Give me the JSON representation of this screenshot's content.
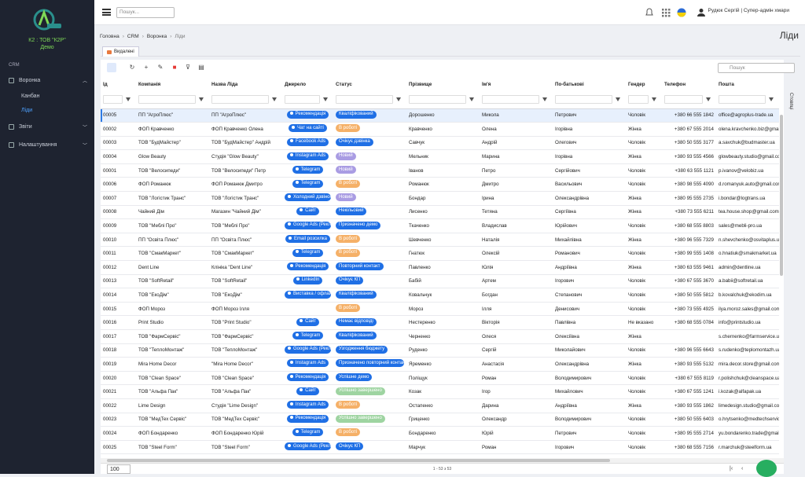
{
  "sidebar": {
    "company": "К2 : ТОВ \"К2Р\"",
    "subtitle": "Демо",
    "section": "CRM",
    "menu": [
      "Воронка",
      "Канбан",
      "Ліди",
      "Звіти",
      "Налаштування"
    ]
  },
  "topbar": {
    "search": "Пошук...",
    "user": "Рудюк Сергій | Супер-адмін хмари"
  },
  "breadcrumb": [
    "Головна",
    "CRM",
    "Воронка",
    "Ліди"
  ],
  "page_title": "Ліди",
  "tab": "Видалені",
  "toolbar": {
    "search": "Пошук",
    "columns_button": "Стовпці"
  },
  "table": {
    "columns": [
      "Ід",
      "Компанія",
      "Назва Ліда",
      "Джерело",
      "Статус",
      "Прізвище",
      "Ім'я",
      "По-батькові",
      "Гендер",
      "Телефон",
      "Пошта"
    ],
    "rows": [
      [
        "00005",
        "ПП \"АгроПлюс\"",
        "ПП \"АгроПлюс\"",
        "Рекомендація",
        "Кваліфікований",
        "Дорошенко",
        "Микола",
        "Петрович",
        "Чоловік",
        "+380 66 555 1842",
        "office@agroplus-trade.ua"
      ],
      [
        "00002",
        "ФОП Кравченко",
        "ФОП Кравченко Олена",
        "Чат на сайті",
        "В роботі",
        "Кравченко",
        "Олена",
        "Ігорівна",
        "Жінка",
        "+380 67 555 2014",
        "olena.kravchenko.biz@gmail"
      ],
      [
        "00003",
        "ТОВ \"БудМайстер\"",
        "ТОВ \"БудМайстер\" Андрій",
        "Facebook Ads",
        "Очікує дзвінка",
        "Савчук",
        "Андрій",
        "Олегович",
        "Чоловік",
        "+380 50 555 3177",
        "a.savchuk@budmaster.ua"
      ],
      [
        "00004",
        "Glow Beauty",
        "Студія \"Glow Beauty\"",
        "Instagram Ads",
        "Новий",
        "Мельник",
        "Марина",
        "Ігорівна",
        "Жінка",
        "+380 93 555 4566",
        "glowbeauty.studio@gmail.co"
      ],
      [
        "00001",
        "ТОВ \"Велосипеди\"",
        "ТОВ \"Велосипеди\" Петр",
        "Telegram",
        "Новий",
        "Іванов",
        "Петро",
        "Сергійович",
        "Чоловік",
        "+380 63 555 1121",
        "p.ivanov@velobiz.ua"
      ],
      [
        "00006",
        "ФОП Романюк",
        "ФОП Романюк Дмитро",
        "Telegram",
        "В роботі",
        "Романюк",
        "Дмитро",
        "Васильович",
        "Чоловік",
        "+380 98 555 4090",
        "d.romanyuk.auto@gmail.com"
      ],
      [
        "00007",
        "ТОВ \"Логістик Транс\"",
        "ТОВ \"Логістик Транс\"",
        "Холодний дзвінок",
        "Новий",
        "Бондар",
        "Ірина",
        "Олександрівна",
        "Жінка",
        "+380 95 555 2735",
        "i.bondar@logtrans.ua"
      ],
      [
        "00008",
        "Чайний Дім",
        "Магазин \"Чайний Дім\"",
        "Сайт",
        "Некільовий",
        "Лисенко",
        "Тетяна",
        "Сергіївна",
        "Жінка",
        "+380 73 555 6211",
        "tea.house.shop@gmail.com"
      ],
      [
        "00009",
        "ТОВ \"Меблі Про\"",
        "ТОВ \"Меблі Про\"",
        "Google Ads (Реклама)",
        "Призначено демо",
        "Ткаченко",
        "Владислав",
        "Юрійович",
        "Чоловік",
        "+380 68 555 8803",
        "sales@mebli-pro.ua"
      ],
      [
        "00010",
        "ПП \"Освіта Плюс\"",
        "ПП \"Освіта Плюс\"",
        "Email розсилка",
        "В роботі",
        "Шевченко",
        "Наталія",
        "Михайлівна",
        "Жінка",
        "+380 96 555 7329",
        "n.shevchenko@osvitaplus.ua"
      ],
      [
        "00011",
        "ТОВ \"СмакМаркет\"",
        "ТОВ \"СмакМаркет\"",
        "Telegram",
        "В роботі",
        "Гнатюк",
        "Олексій",
        "Романович",
        "Чоловік",
        "+380 99 555 1408",
        "o.hnatiuk@smakmarket.ua"
      ],
      [
        "00012",
        "Dent Line",
        "Клініка \"Dent Line\"",
        "Рекомендація",
        "Повторний контакт",
        "Павленко",
        "Юлія",
        "Андріївна",
        "Жінка",
        "+380 63 555 9461",
        "admin@dentline.ua"
      ],
      [
        "00013",
        "ТОВ \"SoftRetail\"",
        "ТОВ \"SoftRetail\"",
        "LinkedIn",
        "Очікує КП",
        "Бабій",
        "Артем",
        "Ігорович",
        "Чоловік",
        "+380 67 555 3670",
        "a.babii@softretail.ua"
      ],
      [
        "00014",
        "ТОВ \"ЕкоДім\"",
        "ТОВ \"ЕкоДім\"",
        "Виставка / офлайн захід",
        "Кваліфікований",
        "Ковальчук",
        "Богдан",
        "Степанович",
        "Чоловік",
        "+380 50 555 5812",
        "b.kovalchuk@ekodim.ua"
      ],
      [
        "00015",
        "ФОП Мороз",
        "ФОП Мороз Ілля",
        null,
        "В роботі",
        "Мороз",
        "Ілля",
        "Денисович",
        "Чоловік",
        "+380 73 555 4925",
        "ilya.moroz.sales@gmail.com"
      ],
      [
        "00016",
        "Print Studio",
        "ТОВ \"Print Studio\"",
        "Сайт",
        "Немає відповіді",
        "Нестеренко",
        "Вікторія",
        "Павлівна",
        "Не вказано",
        "+380 68 555 0784",
        "info@printstudio.ua"
      ],
      [
        "00017",
        "ТОВ \"ФармСервіс\"",
        "ТОВ \"ФармСервіс\"",
        "Telegram",
        "Кваліфікований",
        "Черненко",
        "Олеся",
        "Олексіївна",
        "Жінка",
        null,
        "s.chernenko@farmservice.ua"
      ],
      [
        "00018",
        "ТОВ \"ТеплоМонтаж\"",
        "ТОВ \"ТеплоМонтаж\"",
        "Google Ads (Реклама)",
        "Узгодження бюджету",
        "Руденко",
        "Сергій",
        "Миколайович",
        "Чоловік",
        "+380 96 555 6643",
        "s.rudenko@teplomontazh.ua"
      ],
      [
        "00019",
        "Mira Home Decor",
        "\"Mira Home Decor\"",
        "Instagram Ads",
        "Призначено повторний контакт",
        "Яременко",
        "Анастасія",
        "Олександрівна",
        "Жінка",
        "+380 93 555 5132",
        "mira.decor.store@gmail.com"
      ],
      [
        "00020",
        "ТОВ \"Clean Space\"",
        "ТОВ \"Clean Space\"",
        "Рекомендація",
        "Успішне демо",
        "Поліщук",
        "Роман",
        "Володимирович",
        "Чоловік",
        "+380 67 555 8119",
        "r.polishchuk@cleanspace.ua"
      ],
      [
        "00021",
        "ТОВ \"Альфа Пак\"",
        "ТОВ \"Альфа Пак\"",
        "Сайт",
        "Успішно завершено",
        "Козак",
        "Ігор",
        "Михайлович",
        "Чоловік",
        "+380 67 555 1241",
        "i.kozak@alfapak.ua"
      ],
      [
        "00022",
        "Lime Design",
        "Студія \"Lime Design\"",
        "Instagram Ads",
        "В роботі",
        "Остапенко",
        "Дарина",
        "Андріївна",
        "Жінка",
        "+380 93 555 1862",
        "limedesign.studio@gmail.com"
      ],
      [
        "00023",
        "ТОВ \"МедТех Сервіс\"",
        "ТОВ \"МедТех Сервіс\"",
        "Рекомендація",
        "Успішно завершено",
        "Гриценко",
        "Олександр",
        "Володимирович",
        "Чоловік",
        "+380 50 555 6403",
        "o.hrytsenko@medtechservic"
      ],
      [
        "00024",
        "ФОП Бондаренко",
        "ФОП Бондаренко Юрій",
        "Telegram",
        "В роботі",
        "Бондаренко",
        "Юрій",
        "Петрович",
        "Чоловік",
        "+380 95 555 2714",
        "yu.bondarenko.trade@gmail.co"
      ],
      [
        "00025",
        "ТОВ \"Steel Form\"",
        "ТОВ \"Steel Form\"",
        "Google Ads (Реклама)",
        "Очікує КП",
        "Марчук",
        "Роман",
        "Ігорович",
        "Чоловік",
        "+380 68 555 7156",
        "r.marchuk@steelform.ua"
      ]
    ],
    "status_tones": [
      "blue",
      "orange",
      "blue",
      "purple",
      "purple",
      "orange",
      "purple",
      "blue",
      "blue",
      "orange",
      "orange",
      "blue",
      "blue",
      "blue",
      "orange",
      "blue",
      "blue",
      "blue",
      "blue",
      "blue",
      "green",
      "orange",
      "green",
      "orange",
      "blue"
    ]
  },
  "footer": {
    "page_size": "100",
    "range": "1 - 53 з 53"
  }
}
